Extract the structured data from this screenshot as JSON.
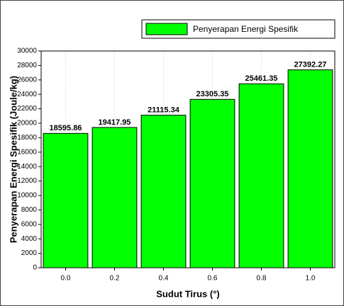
{
  "chart_data": {
    "type": "bar",
    "categories": [
      "0.0",
      "0.2",
      "0.4",
      "0.6",
      "0.8",
      "1.0"
    ],
    "series": [
      {
        "name": "Penyerapan Energi Spesifik",
        "color": "#00ff00",
        "values": [
          18595.86,
          19417.95,
          21115.34,
          23305.35,
          25461.35,
          27392.27
        ]
      }
    ],
    "x_label": "Sudut Tirus (°)",
    "y_label": "Penyerapan Energi Spesifik (Joule/kg)",
    "ylim": [
      0,
      30000
    ],
    "yticks": [
      0,
      2000,
      4000,
      6000,
      8000,
      10000,
      12000,
      14000,
      16000,
      18000,
      20000,
      22000,
      24000,
      26000,
      28000,
      30000
    ],
    "grid": true,
    "legend": "top-right"
  }
}
